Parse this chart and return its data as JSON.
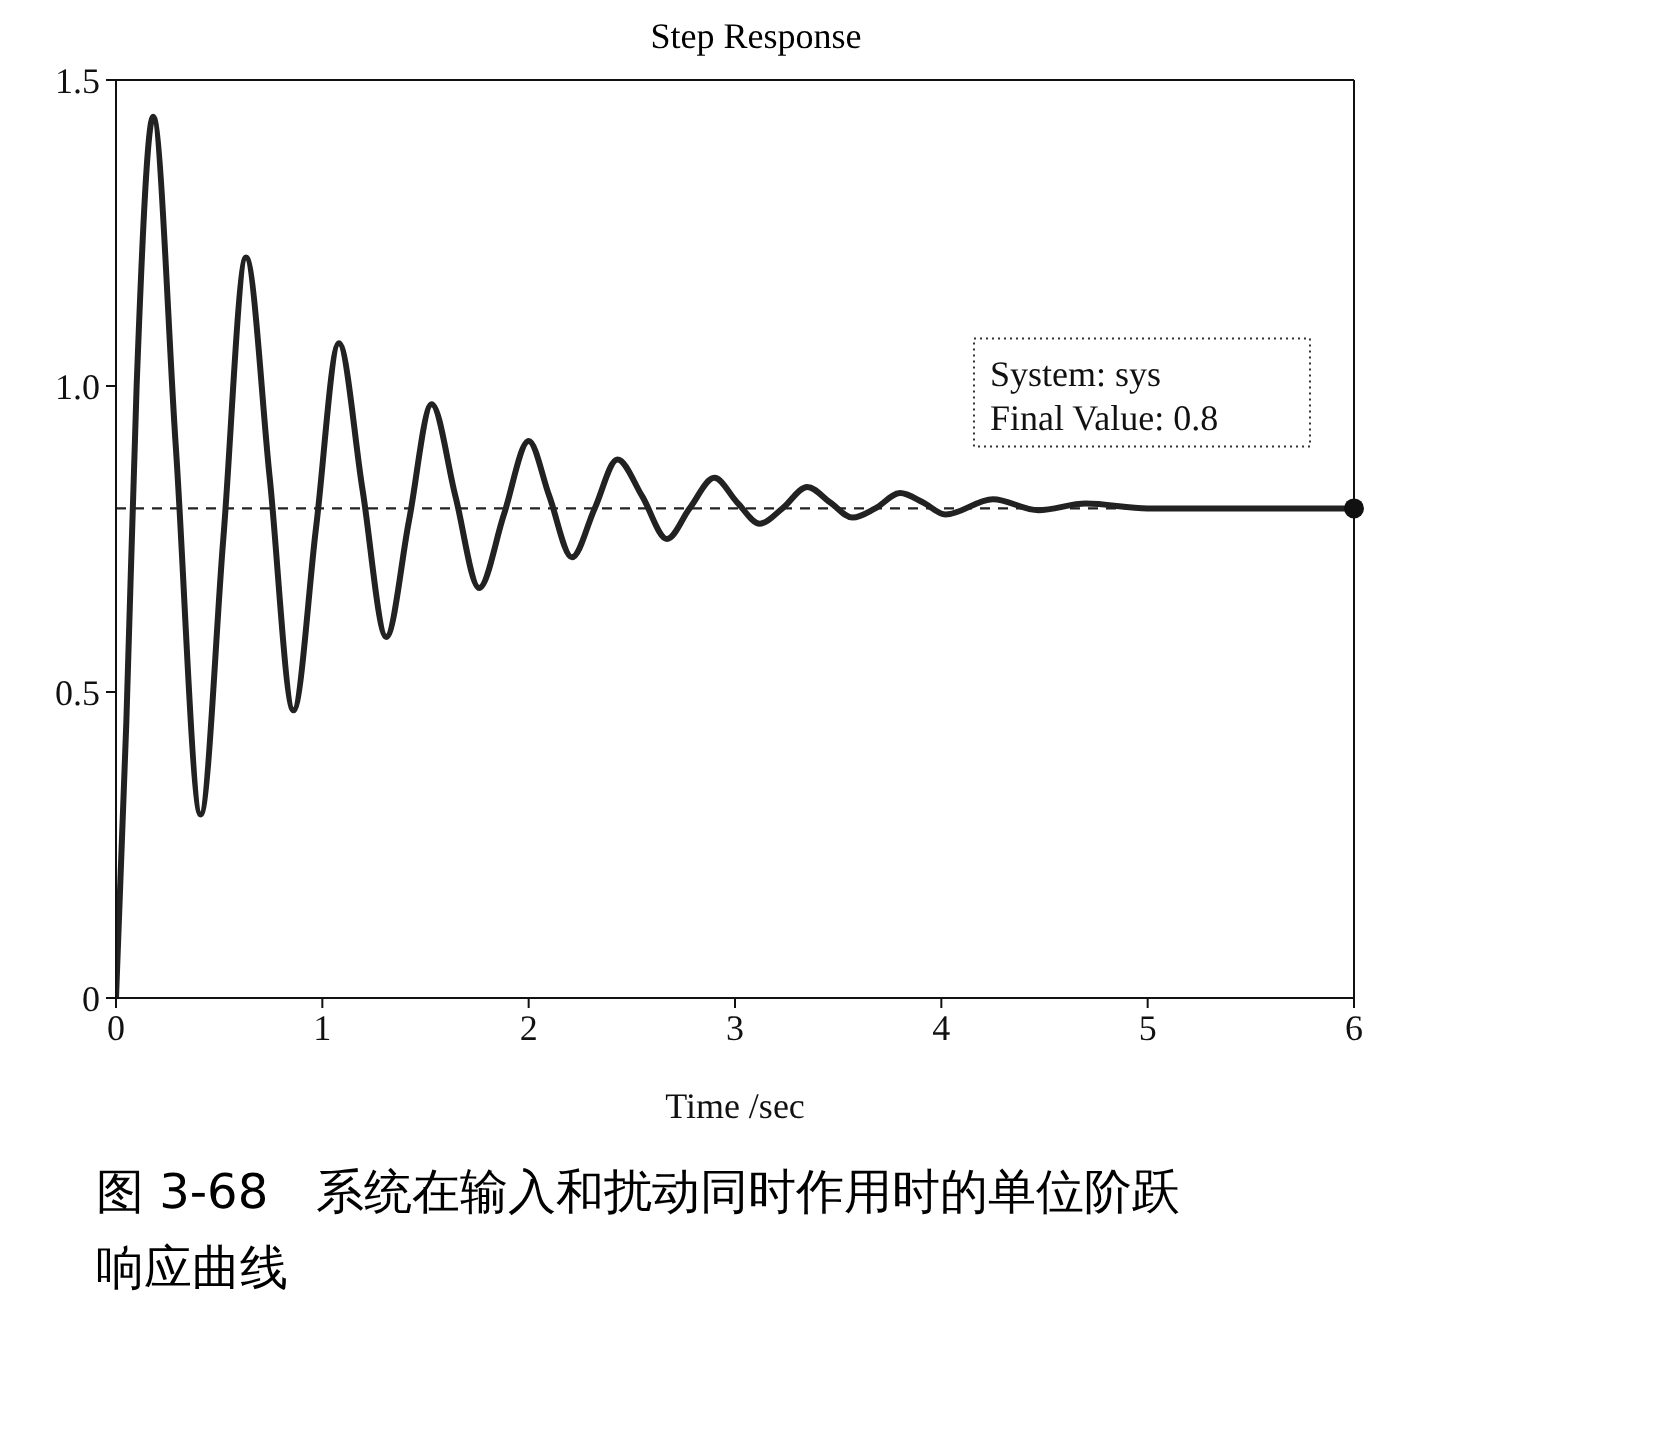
{
  "chart_data": {
    "type": "line",
    "title": "Step Response",
    "xlabel": "Time /sec",
    "x": [
      0,
      0.05,
      0.1,
      0.18,
      0.29,
      0.41,
      0.52,
      0.63,
      0.745,
      0.86,
      0.97,
      1.08,
      1.195,
      1.31,
      1.42,
      1.53,
      1.645,
      1.76,
      1.88,
      2.0,
      2.1,
      2.21,
      2.32,
      2.43,
      2.55,
      2.67,
      2.78,
      2.9,
      3.01,
      3.12,
      3.23,
      3.35,
      3.46,
      3.57,
      3.68,
      3.8,
      3.91,
      4.02,
      4.25,
      4.47,
      4.7,
      5.0,
      5.5,
      6.0
    ],
    "series": [
      {
        "color": "#222222",
        "values": [
          0,
          0.45,
          1.0,
          1.44,
          0.9,
          0.3,
          0.75,
          1.21,
          0.85,
          0.47,
          0.77,
          1.07,
          0.83,
          0.59,
          0.78,
          0.97,
          0.82,
          0.67,
          0.79,
          0.91,
          0.82,
          0.72,
          0.8,
          0.88,
          0.82,
          0.75,
          0.8,
          0.85,
          0.81,
          0.775,
          0.8,
          0.835,
          0.81,
          0.785,
          0.8,
          0.825,
          0.81,
          0.79,
          0.815,
          0.797,
          0.808,
          0.8,
          0.8,
          0.8
        ]
      }
    ],
    "xlim": [
      0,
      6
    ],
    "xticks": [
      0,
      1,
      2,
      3,
      4,
      5,
      6
    ],
    "ylim": [
      0,
      1.5
    ],
    "yticks": [
      0,
      {
        "value": 0.5,
        "label": "0.5"
      },
      {
        "value": 1,
        "label": "1.0"
      },
      {
        "value": 1.5,
        "label": "1.5"
      }
    ],
    "grid": false,
    "legend": false,
    "marker": "none",
    "line_style": "solid",
    "ref_lines": [
      {
        "axis": "y",
        "value": 0.8,
        "line_style": "dashed",
        "color": "#222222"
      }
    ],
    "annotations": [
      "System: sys\nFinal Value: 0.8",
      "图 3-68　系统在输入和扰动同时作用时的单位阶跃响应曲线"
    ]
  }
}
